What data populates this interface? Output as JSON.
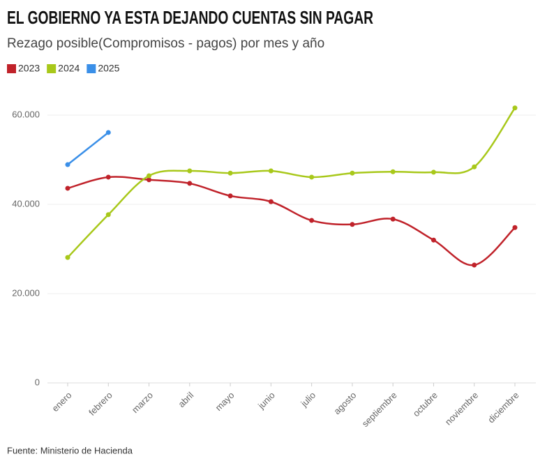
{
  "chart_data": {
    "type": "line",
    "title": "EL GOBIERNO YA ESTA DEJANDO CUENTAS SIN PAGAR",
    "subtitle": "Rezago posible(Compromisos - pagos) por mes y año",
    "source": "Fuente: Ministerio de Hacienda",
    "categories": [
      "enero",
      "febrero",
      "marzo",
      "abril",
      "mayo",
      "junio",
      "julio",
      "agosto",
      "septiembre",
      "octubre",
      "noviembre",
      "diciembre"
    ],
    "series": [
      {
        "name": "2023",
        "color": "#c0222a",
        "values": [
          43600,
          46100,
          45500,
          44700,
          41900,
          40600,
          36400,
          35500,
          36700,
          32000,
          26400,
          34800
        ]
      },
      {
        "name": "2024",
        "color": "#a8c81a",
        "values": [
          28100,
          37700,
          46400,
          47500,
          47000,
          47500,
          46100,
          47000,
          47300,
          47200,
          48400,
          61600
        ]
      },
      {
        "name": "2025",
        "color": "#3a8fe8",
        "values": [
          48900,
          56100,
          null,
          null,
          null,
          null,
          null,
          null,
          null,
          null,
          null,
          null
        ]
      }
    ],
    "ylim": [
      0,
      60000
    ],
    "yticks": [
      0,
      {
        "value": 20000,
        "label": "20.000"
      },
      {
        "value": 40000,
        "label": "40.000"
      },
      {
        "value": 60000,
        "label": "60.000"
      }
    ],
    "grid": true,
    "legend": "top-left"
  }
}
